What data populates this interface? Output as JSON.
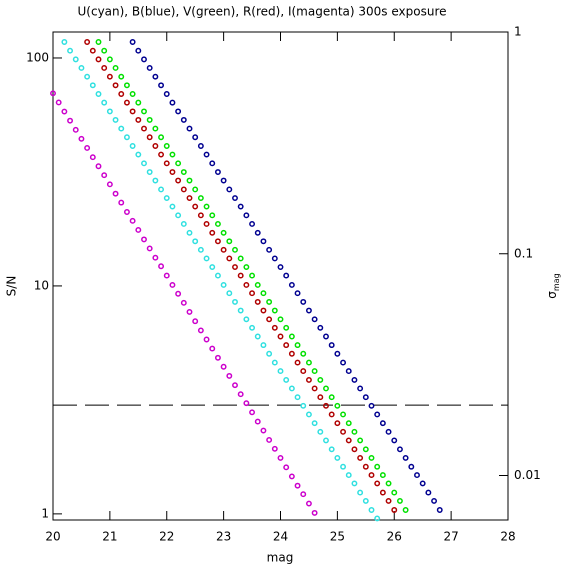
{
  "chart_data": {
    "type": "scatter",
    "title": "U(cyan), B(blue), V(green), R(red), I(magenta) 300s exposure",
    "xlabel": "mag",
    "ylabel": "S/N",
    "y2label": "σ",
    "y2label_subscript": "mag",
    "xlim": [
      20,
      28
    ],
    "xticks": [
      20,
      21,
      22,
      23,
      24,
      25,
      26,
      27,
      28
    ],
    "ylim": [
      0.94,
      130
    ],
    "yticks": [
      1,
      10,
      100
    ],
    "ylog": true,
    "y2lim": [
      0.0063,
      1
    ],
    "y2ticks": [
      0.01,
      0.1,
      1
    ],
    "y2log": true,
    "hline": 3,
    "series": [
      {
        "color": "#30e0e0",
        "x": [
          20.2,
          20.3,
          20.4,
          20.5,
          20.6,
          20.7,
          20.8,
          20.9,
          21.0,
          21.1,
          21.2,
          21.3,
          21.4,
          21.5,
          21.6,
          21.7,
          21.8,
          21.9,
          22.0,
          22.1,
          22.2,
          22.3,
          22.4,
          22.5,
          22.6,
          22.7,
          22.8,
          22.9,
          23.0,
          23.1,
          23.2,
          23.3,
          23.4,
          23.5,
          23.6,
          23.7,
          23.8,
          23.9,
          24.0,
          24.1,
          24.2,
          24.3,
          24.4,
          24.5,
          24.6,
          24.7,
          24.8,
          24.9,
          25.0,
          25.1,
          25.2,
          25.3,
          25.4,
          25.5,
          25.6,
          25.7
        ],
        "values": [
          117.5,
          107.6,
          98.6,
          90.4,
          82.8,
          75.9,
          69.5,
          63.7,
          58.3,
          53.5,
          49.0,
          44.9,
          41.1,
          37.7,
          34.5,
          31.6,
          29.0,
          26.5,
          24.3,
          22.3,
          20.4,
          18.7,
          17.1,
          15.7,
          14.4,
          13.2,
          12.1,
          11.1,
          10.1,
          9.29,
          8.51,
          7.8,
          7.14,
          6.55,
          6.0,
          5.5,
          5.04,
          4.61,
          4.23,
          3.87,
          3.55,
          3.25,
          2.98,
          2.73,
          2.5,
          2.29,
          2.1,
          1.92,
          1.76,
          1.61,
          1.48,
          1.36,
          1.24,
          1.14,
          1.04,
          0.955
        ]
      },
      {
        "color": "#000090",
        "x": [
          21.4,
          21.5,
          21.6,
          21.7,
          21.8,
          21.9,
          22.0,
          22.1,
          22.2,
          22.3,
          22.4,
          22.5,
          22.6,
          22.7,
          22.8,
          22.9,
          23.0,
          23.1,
          23.2,
          23.3,
          23.4,
          23.5,
          23.6,
          23.7,
          23.8,
          23.9,
          24.0,
          24.1,
          24.2,
          24.3,
          24.4,
          24.5,
          24.6,
          24.7,
          24.8,
          24.9,
          25.0,
          25.1,
          25.2,
          25.3,
          25.4,
          25.5,
          25.6,
          25.7,
          25.8,
          25.9,
          26.0,
          26.1,
          26.2,
          26.3,
          26.4,
          26.5,
          26.6,
          26.7,
          26.8
        ],
        "values": [
          117.5,
          107.6,
          98.6,
          90.4,
          82.8,
          75.9,
          69.5,
          63.7,
          58.3,
          53.5,
          49.0,
          44.9,
          41.1,
          37.7,
          34.5,
          31.6,
          29.0,
          26.5,
          24.3,
          22.3,
          20.4,
          18.7,
          17.1,
          15.7,
          14.4,
          13.2,
          12.1,
          11.1,
          10.1,
          9.29,
          8.51,
          7.8,
          7.14,
          6.55,
          6.0,
          5.5,
          5.04,
          4.61,
          4.23,
          3.87,
          3.55,
          3.25,
          2.98,
          2.73,
          2.5,
          2.29,
          2.1,
          1.92,
          1.76,
          1.61,
          1.48,
          1.36,
          1.24,
          1.14,
          1.04
        ]
      },
      {
        "color": "#00e000",
        "x": [
          20.8,
          20.9,
          21.0,
          21.1,
          21.2,
          21.3,
          21.4,
          21.5,
          21.6,
          21.7,
          21.8,
          21.9,
          22.0,
          22.1,
          22.2,
          22.3,
          22.4,
          22.5,
          22.6,
          22.7,
          22.8,
          22.9,
          23.0,
          23.1,
          23.2,
          23.3,
          23.4,
          23.5,
          23.6,
          23.7,
          23.8,
          23.9,
          24.0,
          24.1,
          24.2,
          24.3,
          24.4,
          24.5,
          24.6,
          24.7,
          24.8,
          24.9,
          25.0,
          25.1,
          25.2,
          25.3,
          25.4,
          25.5,
          25.6,
          25.7,
          25.8,
          25.9,
          26.0,
          26.1,
          26.2
        ],
        "values": [
          117.5,
          107.6,
          98.6,
          90.4,
          82.8,
          75.9,
          69.5,
          63.7,
          58.3,
          53.5,
          49.0,
          44.9,
          41.1,
          37.7,
          34.5,
          31.6,
          29.0,
          26.5,
          24.3,
          22.3,
          20.4,
          18.7,
          17.1,
          15.7,
          14.4,
          13.2,
          12.1,
          11.1,
          10.1,
          9.29,
          8.51,
          7.8,
          7.14,
          6.55,
          6.0,
          5.5,
          5.04,
          4.61,
          4.23,
          3.87,
          3.55,
          3.25,
          2.98,
          2.73,
          2.5,
          2.29,
          2.1,
          1.92,
          1.76,
          1.61,
          1.48,
          1.36,
          1.24,
          1.14,
          1.04
        ]
      },
      {
        "color": "#b00000",
        "x": [
          20.6,
          20.7,
          20.8,
          20.9,
          21.0,
          21.1,
          21.2,
          21.3,
          21.4,
          21.5,
          21.6,
          21.7,
          21.8,
          21.9,
          22.0,
          22.1,
          22.2,
          22.3,
          22.4,
          22.5,
          22.6,
          22.7,
          22.8,
          22.9,
          23.0,
          23.1,
          23.2,
          23.3,
          23.4,
          23.5,
          23.6,
          23.7,
          23.8,
          23.9,
          24.0,
          24.1,
          24.2,
          24.3,
          24.4,
          24.5,
          24.6,
          24.7,
          24.8,
          24.9,
          25.0,
          25.1,
          25.2,
          25.3,
          25.4,
          25.5,
          25.6,
          25.7,
          25.8,
          25.9,
          26.0
        ],
        "values": [
          117.5,
          107.6,
          98.6,
          90.4,
          82.8,
          75.9,
          69.5,
          63.7,
          58.3,
          53.5,
          49.0,
          44.9,
          41.1,
          37.7,
          34.5,
          31.6,
          29.0,
          26.5,
          24.3,
          22.3,
          20.4,
          18.7,
          17.1,
          15.7,
          14.4,
          13.2,
          12.1,
          11.1,
          10.1,
          9.29,
          8.51,
          7.8,
          7.14,
          6.55,
          6.0,
          5.5,
          5.04,
          4.61,
          4.23,
          3.87,
          3.55,
          3.25,
          2.98,
          2.73,
          2.5,
          2.29,
          2.1,
          1.92,
          1.76,
          1.61,
          1.48,
          1.36,
          1.24,
          1.14,
          1.04
        ]
      },
      {
        "color": "#cc00cc",
        "x": [
          20.0,
          20.1,
          20.2,
          20.3,
          20.4,
          20.5,
          20.6,
          20.7,
          20.8,
          20.9,
          21.0,
          21.1,
          21.2,
          21.3,
          21.4,
          21.5,
          21.6,
          21.7,
          21.8,
          21.9,
          22.0,
          22.1,
          22.2,
          22.3,
          22.4,
          22.5,
          22.6,
          22.7,
          22.8,
          22.9,
          23.0,
          23.1,
          23.2,
          23.3,
          23.4,
          23.5,
          23.6,
          23.7,
          23.8,
          23.9,
          24.0,
          24.1,
          24.2,
          24.3,
          24.4,
          24.5,
          24.6
        ],
        "values": [
          70.0,
          63.8,
          58.2,
          53.1,
          48.4,
          44.2,
          40.3,
          36.7,
          33.5,
          30.6,
          27.9,
          25.4,
          23.2,
          21.1,
          19.3,
          17.6,
          16.0,
          14.6,
          13.3,
          12.2,
          11.1,
          10.1,
          9.24,
          8.43,
          7.69,
          7.0,
          6.38,
          5.82,
          5.31,
          4.84,
          4.42,
          4.03,
          3.67,
          3.35,
          3.06,
          2.79,
          2.54,
          2.32,
          2.11,
          1.93,
          1.76,
          1.6,
          1.46,
          1.33,
          1.22,
          1.11,
          1.01
        ]
      }
    ]
  }
}
